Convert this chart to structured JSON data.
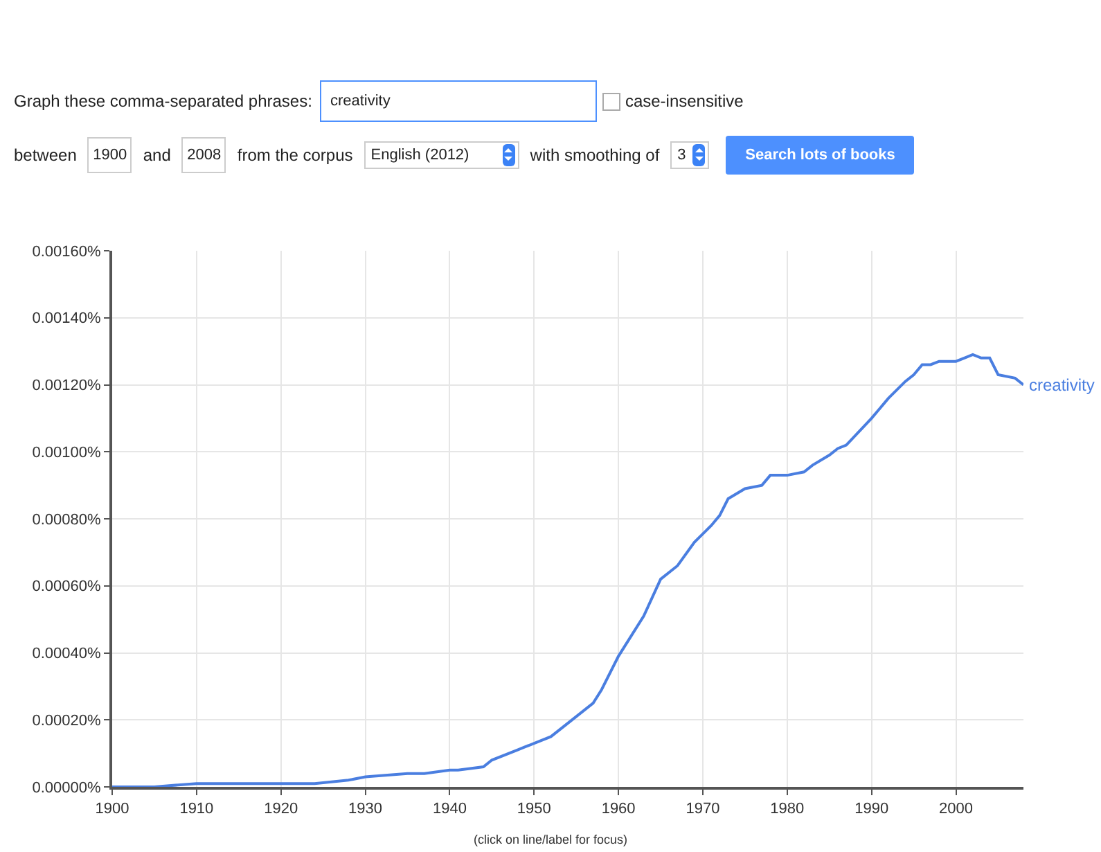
{
  "chart_data": {
    "type": "line",
    "x": [
      1900,
      1905,
      1910,
      1915,
      1920,
      1924,
      1928,
      1930,
      1935,
      1937,
      1940,
      1941,
      1944,
      1945,
      1948,
      1949,
      1952,
      1954,
      1957,
      1958,
      1960,
      1963,
      1965,
      1967,
      1969,
      1971,
      1972,
      1973,
      1975,
      1977,
      1978,
      1979,
      1980,
      1982,
      1983,
      1985,
      1986,
      1987,
      1990,
      1992,
      1994,
      1995,
      1996,
      1997,
      1998,
      2000,
      2001,
      2002,
      2003,
      2004,
      2005,
      2007,
      2008
    ],
    "series": [
      {
        "name": "creativity",
        "color": "#4a7ee0",
        "values": [
          0,
          0,
          1e-05,
          1e-05,
          1e-05,
          1e-05,
          2e-05,
          3e-05,
          4e-05,
          4e-05,
          5e-05,
          5e-05,
          6e-05,
          8e-05,
          0.00011,
          0.00012,
          0.00015,
          0.00019,
          0.00025,
          0.00029,
          0.00039,
          0.00051,
          0.00062,
          0.00066,
          0.00073,
          0.00078,
          0.00081,
          0.00086,
          0.00089,
          0.0009,
          0.00093,
          0.00093,
          0.00093,
          0.00094,
          0.00096,
          0.00099,
          0.00101,
          0.00102,
          0.0011,
          0.00116,
          0.00121,
          0.00123,
          0.00126,
          0.00126,
          0.00127,
          0.00127,
          0.00128,
          0.00129,
          0.00128,
          0.00128,
          0.00123,
          0.00122,
          0.0012
        ]
      }
    ],
    "xlim": [
      1900,
      2008
    ],
    "xticks": [
      1900,
      1910,
      1920,
      1930,
      1940,
      1950,
      1960,
      1970,
      1980,
      1990,
      2000
    ],
    "ylim": [
      0,
      0.0016
    ],
    "yticks": [
      {
        "value": 0,
        "label": "0.00000%"
      },
      {
        "value": 0.0002,
        "label": "0.00020%"
      },
      {
        "value": 0.0004,
        "label": "0.00040%"
      },
      {
        "value": 0.0006,
        "label": "0.00060%"
      },
      {
        "value": 0.0008,
        "label": "0.00080%"
      },
      {
        "value": 0.001,
        "label": "0.00100%"
      },
      {
        "value": 0.0012,
        "label": "0.00120%"
      },
      {
        "value": 0.0014,
        "label": "0.00140%"
      },
      {
        "value": 0.0016,
        "label": "0.00160%"
      }
    ],
    "grid": true,
    "marker": "none",
    "line_style": "solid",
    "annotations": [
      "Graph these comma-separated phrases:",
      "creativity",
      "case-insensitive",
      "between",
      "1900",
      "and",
      "2008",
      "from the corpus",
      "English (2012)",
      "with smoothing of",
      "3",
      "Search lots of books",
      "(click on line/label for focus)"
    ]
  }
}
